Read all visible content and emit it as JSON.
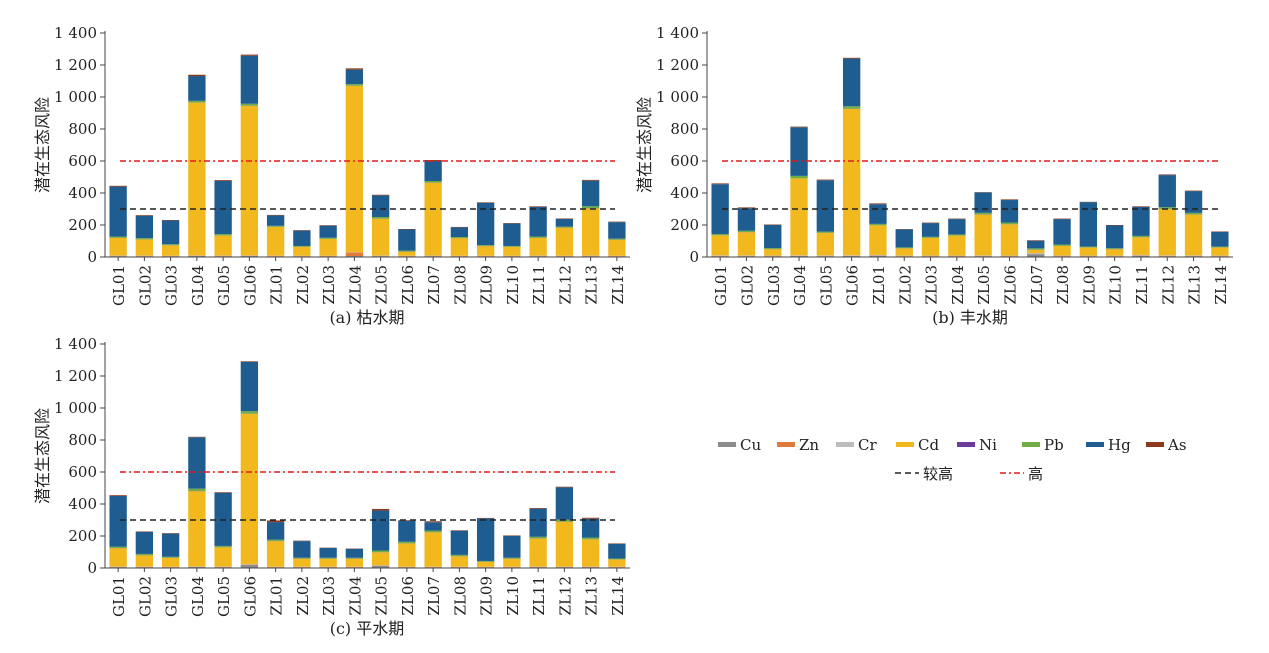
{
  "chart_data": [
    {
      "type": "bar",
      "stacked": true,
      "panel_label": "(a)",
      "subtitle": "枯水期",
      "ylabel": "潜在生态风险",
      "xlabel": "",
      "ylim": [
        0,
        1400
      ],
      "yticks": [
        0,
        200,
        400,
        600,
        800,
        1000,
        1200,
        1400
      ],
      "ytick_labels": [
        "0",
        "200",
        "400",
        "600",
        "800",
        "1 000",
        "1 200",
        "1 400"
      ],
      "categories": [
        "GL01",
        "GL02",
        "GL03",
        "GL04",
        "GL05",
        "GL06",
        "ZL01",
        "ZL02",
        "ZL03",
        "ZL04",
        "ZL05",
        "ZL06",
        "ZL07",
        "ZL08",
        "ZL09",
        "ZL10",
        "ZL11",
        "ZL12",
        "ZL13",
        "ZL14"
      ],
      "series": [
        {
          "name": "Cu",
          "values": [
            5,
            5,
            4,
            6,
            5,
            6,
            4,
            4,
            4,
            6,
            5,
            4,
            5,
            4,
            4,
            4,
            5,
            4,
            5,
            4
          ]
        },
        {
          "name": "Zn",
          "values": [
            2,
            2,
            2,
            2,
            2,
            2,
            2,
            2,
            2,
            22,
            2,
            2,
            2,
            2,
            2,
            2,
            2,
            2,
            2,
            2
          ]
        },
        {
          "name": "Cr",
          "values": [
            2,
            2,
            2,
            2,
            2,
            2,
            2,
            2,
            2,
            2,
            2,
            2,
            2,
            2,
            2,
            2,
            2,
            2,
            2,
            2
          ]
        },
        {
          "name": "Cd",
          "values": [
            110,
            100,
            65,
            955,
            125,
            935,
            180,
            55,
            105,
            1040,
            230,
            25,
            455,
            110,
            60,
            55,
            110,
            175,
            295,
            100
          ]
        },
        {
          "name": "Ni",
          "values": [
            1,
            1,
            1,
            1,
            1,
            1,
            1,
            1,
            1,
            1,
            1,
            1,
            1,
            1,
            1,
            1,
            1,
            1,
            1,
            1
          ]
        },
        {
          "name": "Pb",
          "values": [
            8,
            8,
            6,
            10,
            8,
            12,
            6,
            5,
            6,
            10,
            10,
            6,
            10,
            6,
            5,
            5,
            8,
            6,
            12,
            6
          ]
        },
        {
          "name": "Hg",
          "values": [
            312,
            140,
            148,
            155,
            333,
            300,
            65,
            96,
            76,
            90,
            135,
            132,
            125,
            60,
            265,
            140,
            185,
            48,
            160,
            103
          ]
        },
        {
          "name": "As",
          "values": [
            5,
            4,
            3,
            8,
            5,
            7,
            3,
            3,
            3,
            8,
            4,
            3,
            6,
            3,
            3,
            3,
            4,
            3,
            5,
            3
          ]
        }
      ],
      "reference_lines": [
        {
          "name": "较高",
          "value": 300,
          "style": "dashed",
          "color": "#222222"
        },
        {
          "name": "高",
          "value": 600,
          "style": "dashdot",
          "color": "#e31a1c"
        }
      ]
    },
    {
      "type": "bar",
      "stacked": true,
      "panel_label": "(b)",
      "subtitle": "丰水期",
      "ylabel": "潜在生态风险",
      "xlabel": "",
      "ylim": [
        0,
        1400
      ],
      "yticks": [
        0,
        200,
        400,
        600,
        800,
        1000,
        1200,
        1400
      ],
      "ytick_labels": [
        "0",
        "200",
        "400",
        "600",
        "800",
        "1 000",
        "1 200",
        "1 400"
      ],
      "categories": [
        "GL01",
        "GL02",
        "GL03",
        "GL04",
        "GL05",
        "GL06",
        "ZL01",
        "ZL02",
        "ZL03",
        "ZL04",
        "ZL05",
        "ZL06",
        "ZL07",
        "ZL08",
        "ZL09",
        "ZL10",
        "ZL11",
        "ZL12",
        "ZL13",
        "ZL14"
      ],
      "series": [
        {
          "name": "Cu",
          "values": [
            5,
            5,
            4,
            6,
            5,
            6,
            8,
            4,
            4,
            4,
            5,
            4,
            18,
            4,
            4,
            4,
            8,
            5,
            5,
            4
          ]
        },
        {
          "name": "Zn",
          "values": [
            2,
            2,
            2,
            2,
            2,
            2,
            2,
            2,
            2,
            2,
            2,
            2,
            2,
            2,
            2,
            2,
            2,
            2,
            2,
            2
          ]
        },
        {
          "name": "Cr",
          "values": [
            3,
            3,
            3,
            3,
            3,
            3,
            3,
            3,
            3,
            3,
            3,
            3,
            5,
            3,
            3,
            3,
            3,
            3,
            3,
            3
          ]
        },
        {
          "name": "Cd",
          "values": [
            125,
            145,
            40,
            480,
            140,
            915,
            185,
            45,
            110,
            125,
            255,
            195,
            20,
            60,
            50,
            40,
            110,
            290,
            255,
            50
          ]
        },
        {
          "name": "Ni",
          "values": [
            1,
            1,
            1,
            1,
            1,
            1,
            1,
            1,
            1,
            1,
            1,
            1,
            1,
            1,
            1,
            1,
            1,
            1,
            1,
            1
          ]
        },
        {
          "name": "Pb",
          "values": [
            8,
            8,
            6,
            15,
            8,
            15,
            8,
            5,
            6,
            6,
            10,
            10,
            8,
            8,
            5,
            5,
            8,
            10,
            10,
            5
          ]
        },
        {
          "name": "Hg",
          "values": [
            311,
            141,
            144,
            304,
            321,
            298,
            123,
            113,
            86,
            96,
            127,
            141,
            48,
            159,
            278,
            142,
            181,
            201,
            136,
            92
          ]
        },
        {
          "name": "As",
          "values": [
            5,
            5,
            3,
            4,
            4,
            5,
            5,
            2,
            3,
            3,
            2,
            4,
            3,
            3,
            2,
            3,
            4,
            4,
            3,
            3
          ]
        }
      ],
      "reference_lines": [
        {
          "name": "较高",
          "value": 300,
          "style": "dashed",
          "color": "#222222"
        },
        {
          "name": "高",
          "value": 600,
          "style": "dashdot",
          "color": "#e31a1c"
        }
      ]
    },
    {
      "type": "bar",
      "stacked": true,
      "panel_label": "(c)",
      "subtitle": "平水期",
      "ylabel": "潜在生态风险",
      "xlabel": "",
      "ylim": [
        0,
        1400
      ],
      "yticks": [
        0,
        200,
        400,
        600,
        800,
        1000,
        1200,
        1400
      ],
      "ytick_labels": [
        "0",
        "200",
        "400",
        "600",
        "800",
        "1 000",
        "1 200",
        "1 400"
      ],
      "categories": [
        "GL01",
        "GL02",
        "GL03",
        "GL04",
        "GL05",
        "GL06",
        "ZL01",
        "ZL02",
        "ZL03",
        "ZL04",
        "ZL05",
        "ZL06",
        "ZL07",
        "ZL08",
        "ZL09",
        "ZL10",
        "ZL11",
        "ZL12",
        "ZL13",
        "ZL14"
      ],
      "series": [
        {
          "name": "Cu",
          "values": [
            5,
            5,
            4,
            6,
            5,
            20,
            4,
            4,
            4,
            4,
            14,
            4,
            4,
            4,
            4,
            4,
            5,
            5,
            5,
            4
          ]
        },
        {
          "name": "Zn",
          "values": [
            2,
            2,
            2,
            2,
            2,
            2,
            2,
            2,
            2,
            2,
            2,
            2,
            2,
            2,
            2,
            2,
            2,
            2,
            2,
            2
          ]
        },
        {
          "name": "Cr",
          "values": [
            2,
            2,
            2,
            2,
            2,
            2,
            2,
            2,
            2,
            2,
            2,
            2,
            2,
            2,
            2,
            2,
            2,
            2,
            2,
            2
          ]
        },
        {
          "name": "Cd",
          "values": [
            115,
            70,
            55,
            470,
            120,
            940,
            160,
            50,
            50,
            50,
            80,
            145,
            215,
            65,
            30,
            50,
            175,
            280,
            170,
            45
          ]
        },
        {
          "name": "Ni",
          "values": [
            1,
            1,
            1,
            1,
            1,
            1,
            1,
            1,
            1,
            1,
            1,
            1,
            1,
            1,
            1,
            1,
            1,
            1,
            1,
            1
          ]
        },
        {
          "name": "Pb",
          "values": [
            8,
            8,
            6,
            15,
            8,
            15,
            8,
            5,
            5,
            5,
            10,
            10,
            10,
            8,
            5,
            5,
            10,
            12,
            10,
            5
          ]
        },
        {
          "name": "Hg",
          "values": [
            317,
            138,
            145,
            321,
            332,
            308,
            110,
            104,
            61,
            56,
            250,
            131,
            52,
            151,
            266,
            137,
            176,
            202,
            118,
            92
          ]
        },
        {
          "name": "As",
          "values": [
            5,
            3,
            3,
            3,
            4,
            4,
            10,
            3,
            2,
            2,
            10,
            4,
            6,
            3,
            3,
            3,
            4,
            4,
            6,
            3
          ]
        }
      ],
      "reference_lines": [
        {
          "name": "较高",
          "value": 300,
          "style": "dashed",
          "color": "#222222"
        },
        {
          "name": "高",
          "value": 600,
          "style": "dashdot",
          "color": "#e31a1c"
        }
      ]
    }
  ],
  "legend": {
    "items": [
      {
        "name": "Cu",
        "color": "#8c8c8c"
      },
      {
        "name": "Zn",
        "color": "#e07b39"
      },
      {
        "name": "Cr",
        "color": "#bdbdbd"
      },
      {
        "name": "Cd",
        "color": "#f2b91f"
      },
      {
        "name": "Ni",
        "color": "#6a3d9a"
      },
      {
        "name": "Pb",
        "color": "#70ad47"
      },
      {
        "name": "Hg",
        "color": "#1f5c8f"
      },
      {
        "name": "As",
        "color": "#8b3a1c"
      }
    ],
    "lines": [
      {
        "name": "较高",
        "color": "#222222",
        "style": "dashed"
      },
      {
        "name": "高",
        "color": "#e31a1c",
        "style": "dashdot"
      }
    ]
  }
}
